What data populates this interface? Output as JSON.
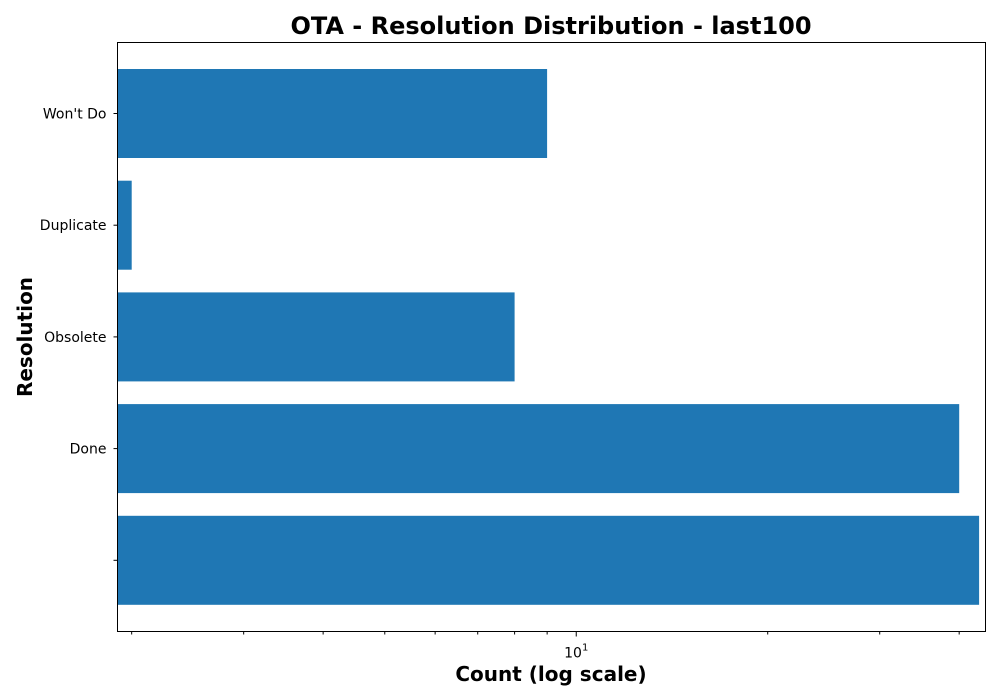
{
  "chart_data": {
    "type": "bar",
    "orientation": "horizontal",
    "title": "OTA - Resolution Distribution - last100",
    "xlabel": "Count (log scale)",
    "ylabel": "Resolution",
    "x_scale": "log",
    "xlim": [
      1.9,
      44
    ],
    "x_major_tick_label": {
      "base": "10",
      "exponent": "1"
    },
    "categories": [
      "Won't Do",
      "Duplicate",
      "Obsolete",
      "Done",
      ""
    ],
    "values": [
      9,
      2,
      8,
      40,
      43
    ],
    "bar_color": "#1f77b4",
    "grid": false,
    "legend": false
  }
}
